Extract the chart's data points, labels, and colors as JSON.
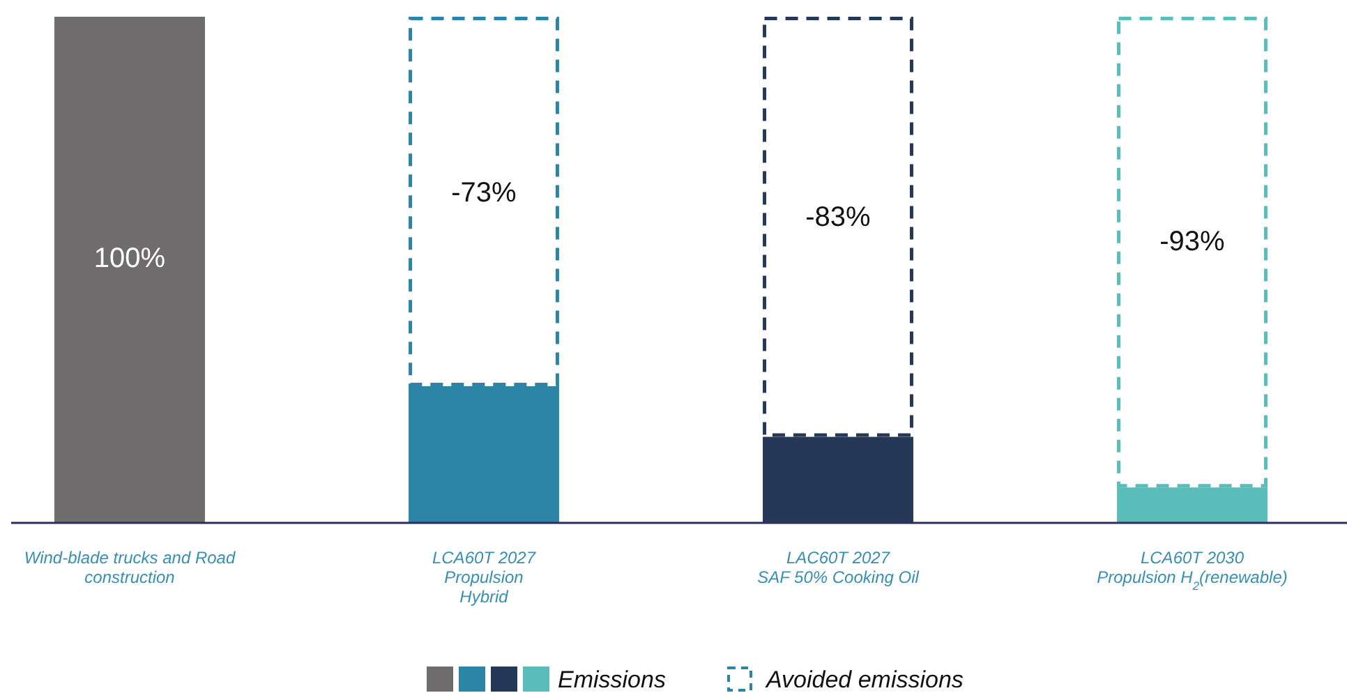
{
  "chart_data": {
    "type": "bar",
    "legend": "bottom",
    "stacked": true,
    "ylim": [
      0,
      100
    ],
    "tick_labels": false,
    "categories": [
      "Wind-blade trucks and Road\nconstruction",
      "LCA60T 2027\nPropulsion\nHybrid",
      "LAC60T 2027\nSAF 50% Cooking Oil",
      "LCA60T 2030\nPropulsion H$_{2}$(renewable)"
    ],
    "series": [
      {
        "name": "Emissions",
        "colors": [
          "#6e6c6c",
          "#2c85a6",
          "#253858",
          "#5bbdb9"
        ],
        "values": [
          100,
          27,
          17,
          7
        ],
        "value_labels": [
          "100%",
          null,
          null,
          null
        ]
      },
      {
        "name": "Avoided emissions",
        "line_style": "dashed",
        "color": "#2c85a6",
        "colors": [
          null,
          "#2c85a6",
          "#253858",
          "#5bbdb9"
        ],
        "values": [
          null,
          73,
          83,
          93
        ]
      }
    ],
    "annotations": [
      "-73%",
      "-83%",
      "-93%"
    ]
  }
}
